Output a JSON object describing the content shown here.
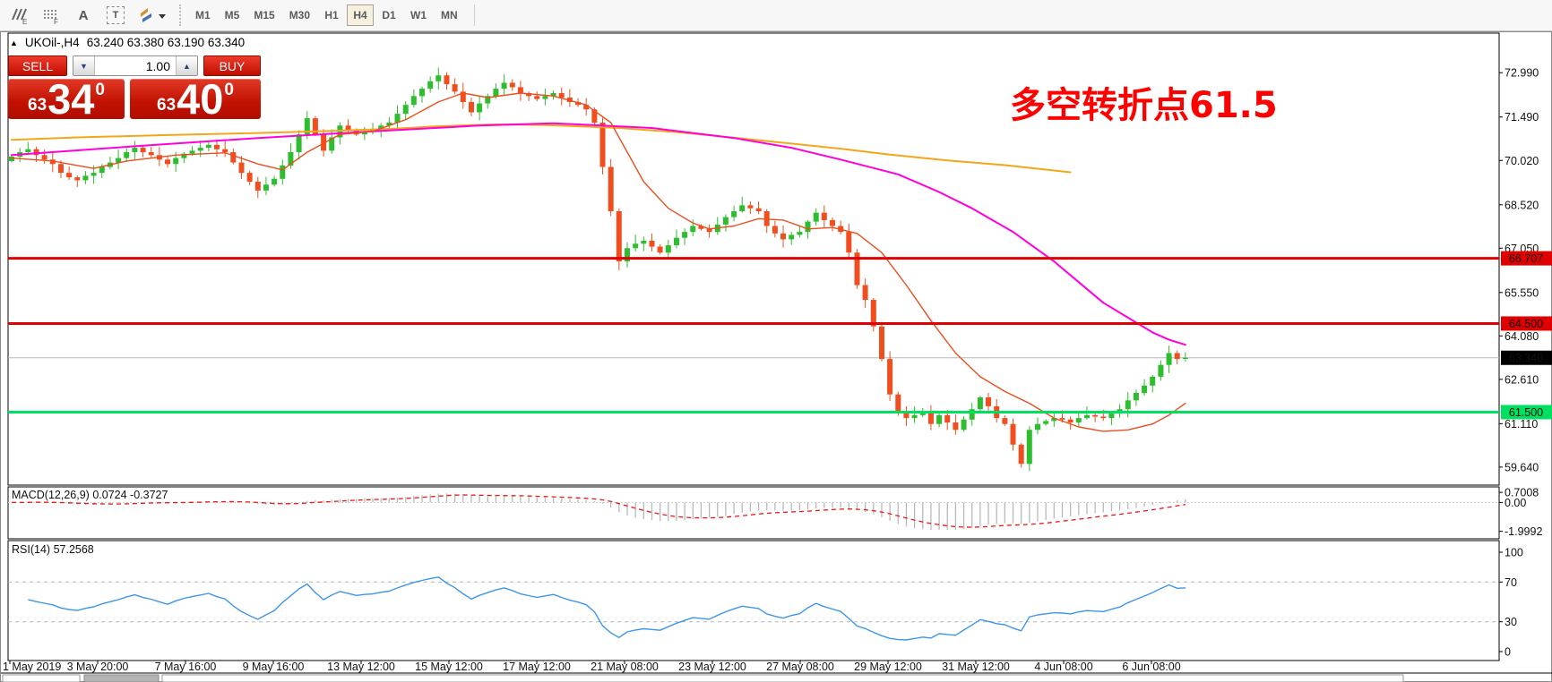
{
  "toolbar": {
    "icons": [
      {
        "name": "indicators-icon",
        "letter": "E"
      },
      {
        "name": "objects-grid-icon",
        "letter": "F"
      },
      {
        "name": "text-label-icon",
        "letter": "A"
      },
      {
        "name": "text-box-icon",
        "letter": "T"
      },
      {
        "name": "cycle-objects-icon",
        "letter": ""
      }
    ],
    "timeframes": [
      {
        "label": "M1"
      },
      {
        "label": "M5"
      },
      {
        "label": "M15"
      },
      {
        "label": "M30"
      },
      {
        "label": "H1"
      },
      {
        "label": "H4"
      },
      {
        "label": "D1"
      },
      {
        "label": "W1"
      },
      {
        "label": "MN"
      }
    ],
    "active_timeframe": "H4"
  },
  "chart": {
    "title": {
      "symbol": "UKOil-,H4",
      "quotes": "63.240 63.380 63.190 63.340"
    },
    "trade_panel": {
      "sell_label": "SELL",
      "buy_label": "BUY",
      "volume": "1.00",
      "sell_price": {
        "small": "63",
        "big": "34",
        "sup": "0"
      },
      "buy_price": {
        "small": "63",
        "big": "40",
        "sup": "0"
      }
    },
    "annotation": {
      "text": "多空转折点61.5",
      "color": "#FE0000"
    },
    "indicators": {
      "macd": {
        "label": "MACD(12,26,9)",
        "value": "0.0724",
        "signal": "-0.3727"
      },
      "rsi": {
        "label": "RSI(14)",
        "value": "57.2568"
      }
    }
  },
  "chart_data": {
    "type": "candlestick",
    "symbol": "UKOil-",
    "timeframe": "H4",
    "ylim": [
      59.03,
      74.33
    ],
    "grid": "off",
    "colors": {
      "up": "#2EBD2E",
      "down": "#F04E1E",
      "ma_slow": "#F2A71B",
      "ma_mid": "#FF00DC",
      "ma_fast": "#E8501E",
      "line_red": "#E10000",
      "line_green": "#00DF60",
      "current_line": "#B8B8B8",
      "rsi": "#3E96E8",
      "macd_hist": "#B9B9B9",
      "macd_signal": "#ED1515"
    },
    "y_ticks": [
      {
        "v": 72.99,
        "label": "72.990"
      },
      {
        "v": 71.49,
        "label": "71.490"
      },
      {
        "v": 70.02,
        "label": "70.020"
      },
      {
        "v": 68.52,
        "label": "68.520"
      },
      {
        "v": 67.05,
        "label": "67.050"
      },
      {
        "v": 65.55,
        "label": "65.550"
      },
      {
        "v": 64.08,
        "label": "64.080"
      },
      {
        "v": 62.61,
        "label": "62.610"
      },
      {
        "v": 61.11,
        "label": "61.110"
      },
      {
        "v": 59.64,
        "label": "59.640"
      }
    ],
    "x_ticks": [
      {
        "label": "1 May 2019"
      },
      {
        "label": "3 May 20:00"
      },
      {
        "label": "7 May 16:00"
      },
      {
        "label": "9 May 16:00"
      },
      {
        "label": "13 May 12:00"
      },
      {
        "label": "15 May 12:00"
      },
      {
        "label": "17 May 12:00"
      },
      {
        "label": "21 May 08:00"
      },
      {
        "label": "23 May 12:00"
      },
      {
        "label": "27 May 08:00"
      },
      {
        "label": "29 May 12:00"
      },
      {
        "label": "31 May 12:00"
      },
      {
        "label": "4 Jun 08:00"
      },
      {
        "label": "6 Jun 08:00"
      }
    ],
    "closes": [
      70.15,
      70.3,
      70.4,
      70.2,
      70.05,
      69.9,
      69.6,
      69.45,
      69.35,
      69.5,
      69.6,
      69.8,
      69.95,
      70.1,
      70.3,
      70.45,
      70.3,
      70.2,
      70.05,
      69.9,
      70.1,
      70.25,
      70.35,
      70.45,
      70.55,
      70.4,
      70.3,
      69.95,
      69.6,
      69.3,
      69.0,
      69.2,
      69.4,
      69.85,
      70.3,
      70.9,
      71.45,
      70.9,
      70.35,
      70.8,
      71.2,
      71.05,
      70.9,
      71.0,
      71.05,
      71.2,
      71.3,
      71.6,
      71.9,
      72.2,
      72.45,
      72.7,
      72.9,
      72.6,
      72.35,
      72.0,
      71.65,
      71.95,
      72.2,
      72.45,
      72.65,
      72.5,
      72.3,
      72.2,
      72.1,
      72.2,
      72.3,
      72.15,
      72.0,
      71.9,
      71.75,
      71.3,
      69.8,
      68.3,
      66.6,
      67.05,
      67.2,
      67.3,
      67.1,
      66.9,
      67.15,
      67.4,
      67.6,
      67.8,
      67.7,
      67.6,
      67.85,
      68.1,
      68.3,
      68.5,
      68.4,
      68.3,
      67.8,
      67.55,
      67.35,
      67.5,
      67.6,
      67.95,
      68.25,
      68.0,
      67.8,
      67.6,
      66.9,
      65.8,
      65.3,
      64.4,
      63.3,
      62.1,
      61.5,
      61.3,
      61.4,
      61.5,
      61.1,
      61.4,
      61.15,
      60.9,
      61.25,
      61.6,
      62.0,
      61.7,
      61.3,
      61.1,
      60.4,
      59.75,
      60.9,
      61.1,
      61.2,
      61.3,
      61.25,
      61.15,
      61.3,
      61.4,
      61.35,
      61.3,
      61.45,
      61.6,
      61.9,
      62.15,
      62.4,
      62.7,
      63.1,
      63.5,
      63.3,
      63.34
    ],
    "first_open": 70.0,
    "special_candles": {
      "74": {
        "o": 68.3,
        "h": 68.4,
        "l": 66.3,
        "c": 66.6
      },
      "123": {
        "o": 60.4,
        "h": 60.45,
        "l": 59.62,
        "c": 59.75
      }
    },
    "moving_averages": [
      {
        "name": "ma-slow-orange",
        "color": "#F2A71B",
        "width": 2,
        "points": [
          [
            0,
            70.72
          ],
          [
            8,
            70.8
          ],
          [
            19,
            70.88
          ],
          [
            30,
            70.95
          ],
          [
            39,
            71.02
          ],
          [
            47,
            71.1
          ],
          [
            52,
            71.18
          ],
          [
            59,
            71.24
          ],
          [
            65,
            71.22
          ],
          [
            74,
            71.12
          ],
          [
            81,
            70.98
          ],
          [
            87,
            70.82
          ],
          [
            94,
            70.62
          ],
          [
            101,
            70.42
          ],
          [
            107,
            70.22
          ],
          [
            114,
            70.02
          ],
          [
            121,
            69.86
          ],
          [
            129,
            69.62
          ]
        ]
      },
      {
        "name": "ma-mid-magenta",
        "color": "#FF00DC",
        "width": 2,
        "points": [
          [
            0,
            70.2
          ],
          [
            15,
            70.5
          ],
          [
            30,
            70.78
          ],
          [
            45,
            71.02
          ],
          [
            57,
            71.2
          ],
          [
            66,
            71.28
          ],
          [
            78,
            71.12
          ],
          [
            88,
            70.78
          ],
          [
            95,
            70.45
          ],
          [
            101,
            70.05
          ],
          [
            108,
            69.55
          ],
          [
            113,
            68.95
          ],
          [
            117,
            68.4
          ],
          [
            122,
            67.6
          ],
          [
            127,
            66.6
          ],
          [
            130,
            65.9
          ],
          [
            133,
            65.2
          ],
          [
            136,
            64.7
          ],
          [
            139,
            64.2
          ],
          [
            141,
            63.95
          ],
          [
            143,
            63.78
          ]
        ]
      },
      {
        "name": "ma-fast-orangered",
        "color": "#E8501E",
        "width": 1.4,
        "points": [
          [
            0,
            70.1
          ],
          [
            5,
            70.0
          ],
          [
            10,
            69.75
          ],
          [
            14,
            70.0
          ],
          [
            20,
            70.2
          ],
          [
            26,
            70.28
          ],
          [
            30,
            69.9
          ],
          [
            33,
            69.7
          ],
          [
            36,
            70.3
          ],
          [
            40,
            70.9
          ],
          [
            44,
            71.0
          ],
          [
            48,
            71.4
          ],
          [
            52,
            72.0
          ],
          [
            55,
            72.3
          ],
          [
            58,
            72.15
          ],
          [
            62,
            72.3
          ],
          [
            66,
            72.2
          ],
          [
            70,
            71.9
          ],
          [
            73,
            71.3
          ],
          [
            75,
            70.3
          ],
          [
            77,
            69.3
          ],
          [
            80,
            68.4
          ],
          [
            83,
            67.9
          ],
          [
            85,
            67.7
          ],
          [
            88,
            67.8
          ],
          [
            91,
            68.05
          ],
          [
            94,
            68.0
          ],
          [
            97,
            67.7
          ],
          [
            100,
            67.75
          ],
          [
            103,
            67.55
          ],
          [
            106,
            66.9
          ],
          [
            109,
            65.8
          ],
          [
            112,
            64.6
          ],
          [
            115,
            63.5
          ],
          [
            118,
            62.7
          ],
          [
            121,
            62.2
          ],
          [
            124,
            61.8
          ],
          [
            127,
            61.3
          ],
          [
            130,
            61.0
          ],
          [
            133,
            60.85
          ],
          [
            136,
            60.9
          ],
          [
            139,
            61.1
          ],
          [
            141,
            61.4
          ],
          [
            143,
            61.8
          ]
        ]
      }
    ],
    "h_lines": [
      {
        "price": 66.707,
        "label": "66.707",
        "color": "#E10000",
        "width": 3
      },
      {
        "price": 64.5,
        "label": "64.500",
        "color": "#E10000",
        "width": 3
      },
      {
        "price": 61.5,
        "label": "61.500",
        "color": "#00DF60",
        "width": 3
      }
    ],
    "current_price": {
      "price": 63.34,
      "label": "63.340",
      "line_color": "#B8B8B8",
      "bg": "#000000"
    },
    "macd": {
      "fast": 12,
      "slow": 26,
      "signal_period": 9,
      "ticks": [
        {
          "v": 0.7008,
          "label": "0.7008"
        },
        {
          "v": 0,
          "label": "0.00"
        },
        {
          "v": -1.9992,
          "label": "-1.9992"
        }
      ],
      "range": [
        -2.52,
        1.08
      ]
    },
    "rsi": {
      "period": 14,
      "ticks": [
        {
          "v": 100,
          "label": "100"
        },
        {
          "v": 70,
          "label": "70"
        },
        {
          "v": 30,
          "label": "30"
        },
        {
          "v": 0,
          "label": "0"
        }
      ],
      "levels": [
        70,
        30
      ]
    }
  }
}
